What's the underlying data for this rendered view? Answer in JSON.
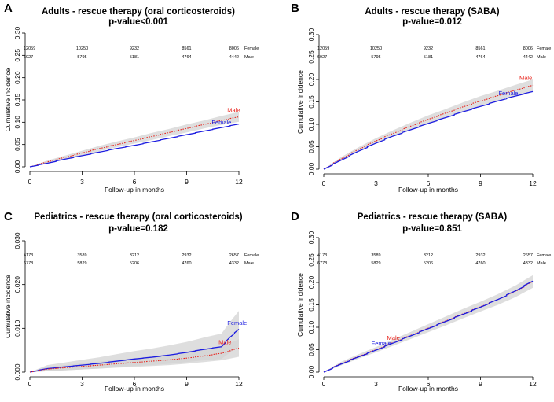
{
  "chart_data": [
    {
      "panel": "A",
      "type": "line",
      "title": "Adults - rescue therapy (oral corticosteroids)",
      "subtitle": "p-value<0.001",
      "xlabel": "Follow-up in months",
      "ylabel": "Cumulative incidence",
      "xlim": [
        0,
        12
      ],
      "ylim": [
        0,
        0.3
      ],
      "xticks": [
        "0",
        "3",
        "6",
        "9",
        "12"
      ],
      "yticks": [
        "0.00",
        "0.05",
        "0.10",
        "0.15",
        "0.20",
        "0.25",
        "0.30"
      ],
      "risk_table": [
        {
          "label": "Female",
          "values": [
            "12059",
            "10250",
            "9232",
            "8561",
            "8006"
          ]
        },
        {
          "label": "Male",
          "values": [
            "6927",
            "5795",
            "5181",
            "4764",
            "4442"
          ]
        }
      ],
      "series": [
        {
          "name": "Male",
          "color": "#e8221b",
          "style": "dotted",
          "x": [
            0,
            1,
            2,
            3,
            4,
            5,
            6,
            7,
            8,
            9,
            10,
            11,
            12
          ],
          "y": [
            0,
            0.011,
            0.021,
            0.031,
            0.041,
            0.05,
            0.059,
            0.068,
            0.077,
            0.086,
            0.095,
            0.104,
            0.112
          ],
          "ci_low": [
            0,
            0.008,
            0.017,
            0.026,
            0.035,
            0.044,
            0.052,
            0.06,
            0.069,
            0.077,
            0.086,
            0.094,
            0.101
          ],
          "ci_high": [
            0,
            0.014,
            0.025,
            0.036,
            0.047,
            0.057,
            0.066,
            0.076,
            0.085,
            0.095,
            0.104,
            0.114,
            0.123
          ]
        },
        {
          "name": "Female",
          "color": "#1c1ce0",
          "style": "solid",
          "x": [
            0,
            1,
            2,
            3,
            4,
            5,
            6,
            7,
            8,
            9,
            10,
            11,
            12
          ],
          "y": [
            0,
            0.008,
            0.017,
            0.025,
            0.033,
            0.041,
            0.048,
            0.056,
            0.064,
            0.072,
            0.08,
            0.088,
            0.096
          ]
        }
      ]
    },
    {
      "panel": "B",
      "type": "line",
      "title": "Adults - rescue therapy (SABA)",
      "subtitle": "p-value=0.012",
      "xlabel": "Follow-up in months",
      "ylabel": "Cumulative incidence",
      "xlim": [
        0,
        12
      ],
      "ylim": [
        0,
        0.3
      ],
      "xticks": [
        "0",
        "3",
        "6",
        "9",
        "12"
      ],
      "yticks": [
        "0.00",
        "0.05",
        "0.10",
        "0.15",
        "0.20",
        "0.25",
        "0.30"
      ],
      "risk_table": [
        {
          "label": "Female",
          "values": [
            "12059",
            "10250",
            "9232",
            "8561",
            "8006"
          ]
        },
        {
          "label": "Male",
          "values": [
            "6927",
            "5795",
            "5181",
            "4764",
            "4442"
          ]
        }
      ],
      "series": [
        {
          "name": "Male",
          "color": "#e8221b",
          "style": "dotted",
          "x": [
            0,
            1,
            2,
            3,
            4,
            5,
            6,
            7,
            8,
            9,
            10,
            11,
            12
          ],
          "y": [
            0,
            0.023,
            0.044,
            0.063,
            0.08,
            0.096,
            0.111,
            0.125,
            0.139,
            0.152,
            0.164,
            0.176,
            0.187
          ],
          "ci_low": [
            0,
            0.019,
            0.039,
            0.057,
            0.073,
            0.088,
            0.102,
            0.116,
            0.129,
            0.141,
            0.153,
            0.164,
            0.174
          ],
          "ci_high": [
            0,
            0.027,
            0.049,
            0.069,
            0.087,
            0.104,
            0.12,
            0.134,
            0.149,
            0.163,
            0.175,
            0.188,
            0.2
          ]
        },
        {
          "name": "Female",
          "color": "#1c1ce0",
          "style": "solid",
          "x": [
            0,
            1,
            2,
            3,
            4,
            5,
            6,
            7,
            8,
            9,
            10,
            11,
            12
          ],
          "y": [
            0,
            0.02,
            0.04,
            0.058,
            0.074,
            0.088,
            0.102,
            0.115,
            0.128,
            0.14,
            0.152,
            0.163,
            0.173
          ]
        }
      ]
    },
    {
      "panel": "C",
      "type": "line",
      "title": "Pediatrics - rescue therapy (oral corticosteroids)",
      "subtitle": "p-value=0.182",
      "xlabel": "Follow-up in months",
      "ylabel": "Cumulative incidence",
      "xlim": [
        0,
        12
      ],
      "ylim": [
        0,
        0.03
      ],
      "xticks": [
        "0",
        "3",
        "6",
        "9",
        "12"
      ],
      "yticks": [
        "0.000",
        "0.010",
        "0.020",
        "0.030"
      ],
      "risk_table": [
        {
          "label": "Female",
          "values": [
            "4173",
            "3589",
            "3212",
            "2932",
            "2657"
          ]
        },
        {
          "label": "Male",
          "values": [
            "6778",
            "5829",
            "5206",
            "4760",
            "4332"
          ]
        }
      ],
      "series": [
        {
          "name": "Female",
          "color": "#1c1ce0",
          "style": "solid",
          "x": [
            0,
            1,
            2,
            3,
            4,
            5,
            6,
            7,
            8,
            9,
            10,
            11,
            11.5,
            12
          ],
          "y": [
            0,
            0.0008,
            0.0012,
            0.0016,
            0.002,
            0.0025,
            0.003,
            0.0034,
            0.0039,
            0.0045,
            0.0052,
            0.0058,
            0.008,
            0.0098
          ],
          "ci_low": [
            0,
            0.0002,
            0.0004,
            0.0006,
            0.0008,
            0.0011,
            0.0014,
            0.0016,
            0.0019,
            0.0023,
            0.0027,
            0.003,
            0.0045,
            0.0058
          ],
          "ci_high": [
            0,
            0.0016,
            0.0022,
            0.0028,
            0.0034,
            0.0041,
            0.0048,
            0.0054,
            0.0061,
            0.0069,
            0.0079,
            0.0088,
            0.0115,
            0.014
          ]
        },
        {
          "name": "Male",
          "color": "#e8221b",
          "style": "dotted",
          "x": [
            0,
            1,
            2,
            3,
            4,
            5,
            6,
            7,
            8,
            9,
            10,
            11,
            12
          ],
          "y": [
            0,
            0.0007,
            0.001,
            0.0013,
            0.0016,
            0.0019,
            0.0022,
            0.0025,
            0.0028,
            0.0032,
            0.0037,
            0.0043,
            0.0055
          ],
          "ci_low": [
            0,
            0.0002,
            0.0004,
            0.0006,
            0.0008,
            0.001,
            0.0012,
            0.0014,
            0.0016,
            0.0019,
            0.0023,
            0.0027,
            0.0035
          ],
          "ci_high": [
            0,
            0.0012,
            0.0016,
            0.002,
            0.0024,
            0.0028,
            0.0032,
            0.0036,
            0.004,
            0.0045,
            0.0051,
            0.0059,
            0.0075
          ]
        }
      ]
    },
    {
      "panel": "D",
      "type": "line",
      "title": "Pediatrics - rescue therapy (SABA)",
      "subtitle": "p-value=0.851",
      "xlabel": "Follow-up in months",
      "ylabel": "Cumulative incidence",
      "xlim": [
        0,
        12
      ],
      "ylim": [
        0,
        0.3
      ],
      "xticks": [
        "0",
        "3",
        "6",
        "9",
        "12"
      ],
      "yticks": [
        "0.00",
        "0.05",
        "0.10",
        "0.15",
        "0.20",
        "0.25",
        "0.30"
      ],
      "risk_table": [
        {
          "label": "Female",
          "values": [
            "4173",
            "3589",
            "3212",
            "2932",
            "2657"
          ]
        },
        {
          "label": "Male",
          "values": [
            "6778",
            "5829",
            "5206",
            "4760",
            "4332"
          ]
        }
      ],
      "series": [
        {
          "name": "Male",
          "color": "#e8221b",
          "style": "dotted",
          "x": [
            0,
            1,
            2,
            3,
            4,
            5,
            6,
            7,
            8,
            9,
            10,
            11,
            12
          ],
          "y": [
            0,
            0.019,
            0.035,
            0.05,
            0.066,
            0.082,
            0.098,
            0.114,
            0.13,
            0.146,
            0.162,
            0.18,
            0.202
          ],
          "ci_low": [
            0,
            0.015,
            0.03,
            0.044,
            0.059,
            0.074,
            0.089,
            0.104,
            0.12,
            0.135,
            0.15,
            0.167,
            0.188
          ],
          "ci_high": [
            0,
            0.023,
            0.04,
            0.056,
            0.073,
            0.09,
            0.107,
            0.124,
            0.141,
            0.157,
            0.174,
            0.193,
            0.216
          ]
        },
        {
          "name": "Female",
          "color": "#1c1ce0",
          "style": "solid",
          "x": [
            0,
            1,
            2,
            3,
            4,
            5,
            6,
            7,
            8,
            9,
            10,
            11,
            12
          ],
          "y": [
            0,
            0.018,
            0.034,
            0.049,
            0.065,
            0.081,
            0.097,
            0.113,
            0.129,
            0.145,
            0.162,
            0.181,
            0.203
          ]
        }
      ]
    }
  ]
}
